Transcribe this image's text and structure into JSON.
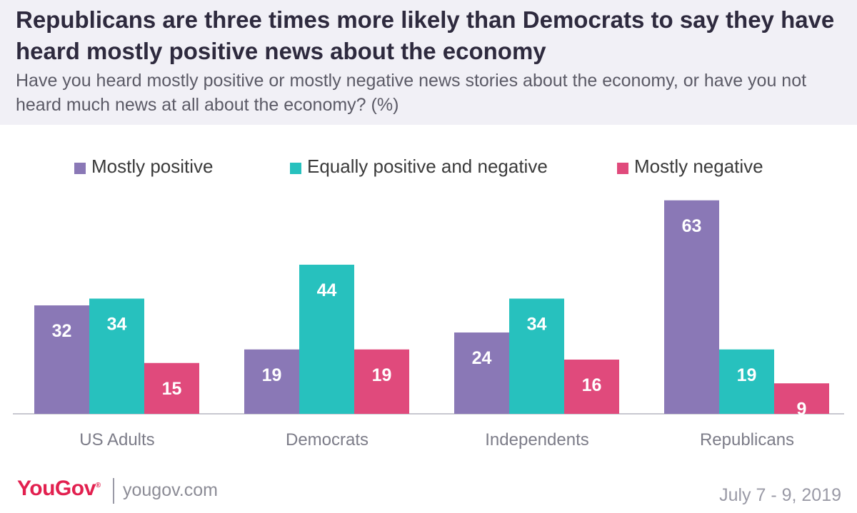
{
  "header": {
    "title": "Republicans are three times more likely than Democrats to say they have heard mostly positive news about the economy",
    "subtitle": "Have you heard mostly positive or mostly negative news stories about the economy, or have you not heard much news at all about the economy? (%)"
  },
  "legend": [
    {
      "label": "Mostly positive",
      "color": "#8a78b6"
    },
    {
      "label": "Equally positive and negative",
      "color": "#27c1be"
    },
    {
      "label": "Mostly negative",
      "color": "#e04a7c"
    }
  ],
  "chart_data": {
    "type": "bar",
    "categories": [
      "US Adults",
      "Democrats",
      "Independents",
      "Republicans"
    ],
    "series": [
      {
        "name": "Mostly positive",
        "values": [
          32,
          19,
          24,
          63
        ],
        "color": "#8a78b6"
      },
      {
        "name": "Equally positive and negative",
        "values": [
          34,
          44,
          34,
          19
        ],
        "color": "#27c1be"
      },
      {
        "name": "Mostly negative",
        "values": [
          15,
          19,
          16,
          9
        ],
        "color": "#e04a7c"
      }
    ],
    "ylim": [
      0,
      63
    ],
    "grid": false,
    "legend_position": "top",
    "data_labels": true
  },
  "footer": {
    "brand": "YouGov",
    "site": "yougov.com",
    "date": "July 7 - 9, 2019"
  }
}
